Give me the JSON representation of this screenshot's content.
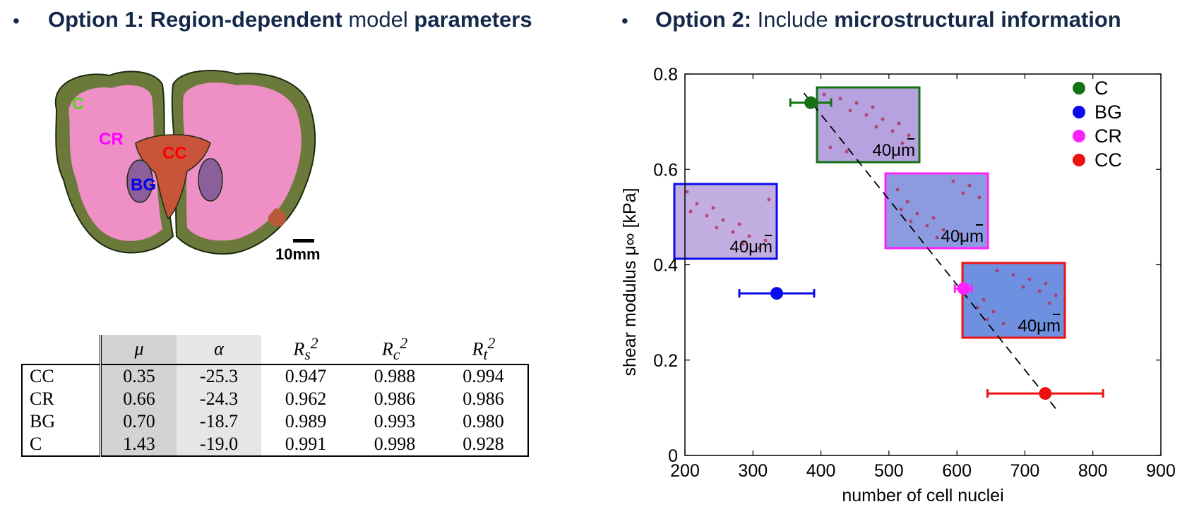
{
  "left_heading": {
    "bullet": "•",
    "prefix": "Option 1: Region-dependent",
    "middle": " model ",
    "suffix": "parameters"
  },
  "right_heading": {
    "bullet": "•",
    "prefix": "Option 2:",
    "middle": " Include ",
    "suffix": "microstructural information"
  },
  "brain_figure": {
    "labels": [
      "C",
      "CR",
      "CC",
      "BG"
    ],
    "label_colors": {
      "C": "#5fd21e",
      "CR": "#ff00ff",
      "CC": "#ff0000",
      "BG": "#0000ee"
    },
    "scale_label": "10mm"
  },
  "table": {
    "headers": [
      "",
      "μ",
      "α",
      "R_s^2",
      "R_c^2",
      "R_t^2"
    ],
    "rows": [
      [
        "CC",
        "0.35",
        "-25.3",
        "0.947",
        "0.988",
        "0.994"
      ],
      [
        "CR",
        "0.66",
        "-24.3",
        "0.962",
        "0.986",
        "0.986"
      ],
      [
        "BG",
        "0.70",
        "-18.7",
        "0.989",
        "0.993",
        "0.980"
      ],
      [
        "C",
        "1.43",
        "-19.0",
        "0.991",
        "0.998",
        "0.928"
      ]
    ]
  },
  "chart_data": {
    "type": "scatter",
    "xlabel": "number of cell nuclei",
    "ylabel": "shear modulus μ∞ [kPa]",
    "xlim": [
      200,
      900
    ],
    "ylim": [
      0,
      0.8
    ],
    "xticks": [
      "200",
      "300",
      "400",
      "500",
      "600",
      "700",
      "800",
      "900"
    ],
    "yticks": [
      "0",
      "0.2",
      "0.4",
      "0.6",
      "0.8"
    ],
    "legend_position": "top-right",
    "series": [
      {
        "name": "C",
        "color": "#137313",
        "x": 385,
        "y": 0.74,
        "xerr": [
          355,
          415
        ]
      },
      {
        "name": "BG",
        "color": "#0a0aee",
        "x": 335,
        "y": 0.34,
        "xerr": [
          280,
          390
        ]
      },
      {
        "name": "CR",
        "color": "#ff22ff",
        "x": 610,
        "y": 0.35,
        "xerr": [
          597,
          622
        ]
      },
      {
        "name": "CC",
        "color": "#ee1111",
        "x": 730,
        "y": 0.13,
        "xerr": [
          645,
          815
        ]
      }
    ],
    "trend_line": {
      "x": [
        375,
        750
      ],
      "y": [
        0.76,
        0.09
      ]
    },
    "insets": [
      {
        "label": "40μm",
        "border": "#137313"
      },
      {
        "label": "40μm",
        "border": "#0a0aee"
      },
      {
        "label": "40μm",
        "border": "#ff22ff"
      },
      {
        "label": "40μm",
        "border": "#ee1111"
      }
    ]
  }
}
